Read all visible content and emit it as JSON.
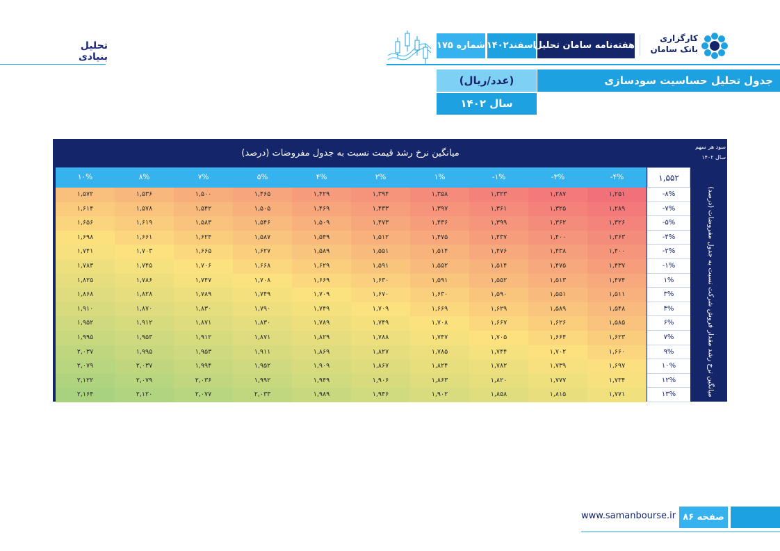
{
  "header": {
    "section_title": "تحلیل بنیادی",
    "issue": "شماره ۱۷۵",
    "date": "اسفند۱۴۰۲",
    "weekly": "هفته‌نامه سامان تحلیل",
    "logo_line1": "کارگزاری",
    "logo_line2": "بانک سامان"
  },
  "title_block": {
    "title": "جدول تحلیل حساسیت سودسازی",
    "unit": "(عدد/ریال)",
    "year": "سال ۱۴۰۲"
  },
  "table": {
    "col_axis_title": "میانگین نرخ رشد قیمت نسبت به جدول مفروضات (درصد)",
    "eps_label": "سود هر سهم",
    "eps_year": "سال ۱۴۰۲",
    "base_value": "۱,۵۵۲",
    "row_axis_title": "میانگین نرخ رشد مقدار فروش شرکت نسبت به جدول مفروضات (درصد)",
    "columns": [
      "-۴%",
      "-۳%",
      "-۱%",
      "۱%",
      "۲%",
      "۴%",
      "۵%",
      "۷%",
      "۸%",
      "۱۰%"
    ],
    "rows": [
      {
        "label": "-۸%",
        "values": [
          "۱,۲۵۱",
          "۱,۲۸۷",
          "۱,۳۲۳",
          "۱,۳۵۸",
          "۱,۳۹۴",
          "۱,۴۲۹",
          "۱,۴۶۵",
          "۱,۵۰۰",
          "۱,۵۳۶",
          "۱,۵۷۲"
        ]
      },
      {
        "label": "-۷%",
        "values": [
          "۱,۲۸۹",
          "۱,۳۲۵",
          "۱,۳۶۱",
          "۱,۳۹۷",
          "۱,۴۳۳",
          "۱,۴۶۹",
          "۱,۵۰۵",
          "۱,۵۴۲",
          "۱,۵۷۸",
          "۱,۶۱۴"
        ]
      },
      {
        "label": "-۵%",
        "values": [
          "۱,۳۲۶",
          "۱,۳۶۲",
          "۱,۳۹۹",
          "۱,۴۳۶",
          "۱,۴۷۳",
          "۱,۵۰۹",
          "۱,۵۴۶",
          "۱,۵۸۳",
          "۱,۶۱۹",
          "۱,۶۵۶"
        ]
      },
      {
        "label": "-۴%",
        "values": [
          "۱,۳۶۳",
          "۱,۴۰۰",
          "۱,۴۳۷",
          "۱,۴۷۵",
          "۱,۵۱۲",
          "۱,۵۴۹",
          "۱,۵۸۷",
          "۱,۶۲۴",
          "۱,۶۶۱",
          "۱,۶۹۸"
        ]
      },
      {
        "label": "-۲%",
        "values": [
          "۱,۴۰۰",
          "۱,۴۳۸",
          "۱,۴۷۶",
          "۱,۵۱۴",
          "۱,۵۵۱",
          "۱,۵۸۹",
          "۱,۶۲۷",
          "۱,۶۶۵",
          "۱,۷۰۳",
          "۱,۷۴۱"
        ]
      },
      {
        "label": "-۱%",
        "values": [
          "۱,۴۳۷",
          "۱,۴۷۵",
          "۱,۵۱۴",
          "۱,۵۵۲",
          "۱,۵۹۱",
          "۱,۶۲۹",
          "۱,۶۶۸",
          "۱,۷۰۶",
          "۱,۷۴۵",
          "۱,۷۸۳"
        ]
      },
      {
        "label": "۱%",
        "values": [
          "۱,۴۷۴",
          "۱,۵۱۳",
          "۱,۵۵۲",
          "۱,۵۹۱",
          "۱,۶۳۰",
          "۱,۶۶۹",
          "۱,۷۰۸",
          "۱,۷۴۷",
          "۱,۷۸۶",
          "۱,۸۲۵"
        ]
      },
      {
        "label": "۳%",
        "values": [
          "۱,۵۱۱",
          "۱,۵۵۱",
          "۱,۵۹۰",
          "۱,۶۳۰",
          "۱,۶۷۰",
          "۱,۷۰۹",
          "۱,۷۴۹",
          "۱,۷۸۹",
          "۱,۸۲۸",
          "۱,۸۶۸"
        ]
      },
      {
        "label": "۴%",
        "values": [
          "۱,۵۴۸",
          "۱,۵۸۹",
          "۱,۶۲۹",
          "۱,۶۶۹",
          "۱,۷۰۹",
          "۱,۷۴۹",
          "۱,۷۹۰",
          "۱,۸۳۰",
          "۱,۸۷۰",
          "۱,۹۱۰"
        ]
      },
      {
        "label": "۶%",
        "values": [
          "۱,۵۸۵",
          "۱,۶۲۶",
          "۱,۶۶۷",
          "۱,۷۰۸",
          "۱,۷۴۹",
          "۱,۷۸۹",
          "۱,۸۳۰",
          "۱,۸۷۱",
          "۱,۹۱۲",
          "۱,۹۵۲"
        ]
      },
      {
        "label": "۷%",
        "values": [
          "۱,۶۲۳",
          "۱,۶۶۴",
          "۱,۷۰۵",
          "۱,۷۴۷",
          "۱,۷۸۸",
          "۱,۸۲۹",
          "۱,۸۷۱",
          "۱,۹۱۲",
          "۱,۹۵۳",
          "۱,۹۹۵"
        ]
      },
      {
        "label": "۹%",
        "values": [
          "۱,۶۶۰",
          "۱,۷۰۲",
          "۱,۷۴۴",
          "۱,۷۸۵",
          "۱,۸۲۷",
          "۱,۸۶۹",
          "۱,۹۱۱",
          "۱,۹۵۳",
          "۱,۹۹۵",
          "۲,۰۳۷"
        ]
      },
      {
        "label": "۱۰%",
        "values": [
          "۱,۶۹۷",
          "۱,۷۳۹",
          "۱,۷۸۲",
          "۱,۸۲۴",
          "۱,۸۶۷",
          "۱,۹۰۹",
          "۱,۹۵۲",
          "۱,۹۹۴",
          "۲,۰۳۷",
          "۲,۰۷۹"
        ]
      },
      {
        "label": "۱۲%",
        "values": [
          "۱,۷۳۴",
          "۱,۷۷۷",
          "۱,۸۲۰",
          "۱,۸۶۳",
          "۱,۹۰۶",
          "۱,۹۴۹",
          "۱,۹۹۲",
          "۲,۰۳۶",
          "۲,۰۷۹",
          "۲,۱۲۲"
        ]
      },
      {
        "label": "۱۳%",
        "values": [
          "۱,۷۷۱",
          "۱,۸۱۵",
          "۱,۸۵۸",
          "۱,۹۰۲",
          "۱,۹۴۶",
          "۱,۹۸۹",
          "۲,۰۳۳",
          "۲,۰۷۷",
          "۲,۱۲۰",
          "۲,۱۶۴"
        ]
      }
    ],
    "heat_numeric": {
      "min": 1251,
      "max": 2164,
      "low_color": "#f2707a",
      "mid_color": "#fce27e",
      "high_color": "#a8d27f"
    }
  },
  "footer": {
    "url": "www.samanbourse.ir",
    "page": "صفحه ۸۶"
  },
  "colors": {
    "navy": "#14256a",
    "blue": "#1da1e0",
    "light_blue": "#36b3ee"
  }
}
